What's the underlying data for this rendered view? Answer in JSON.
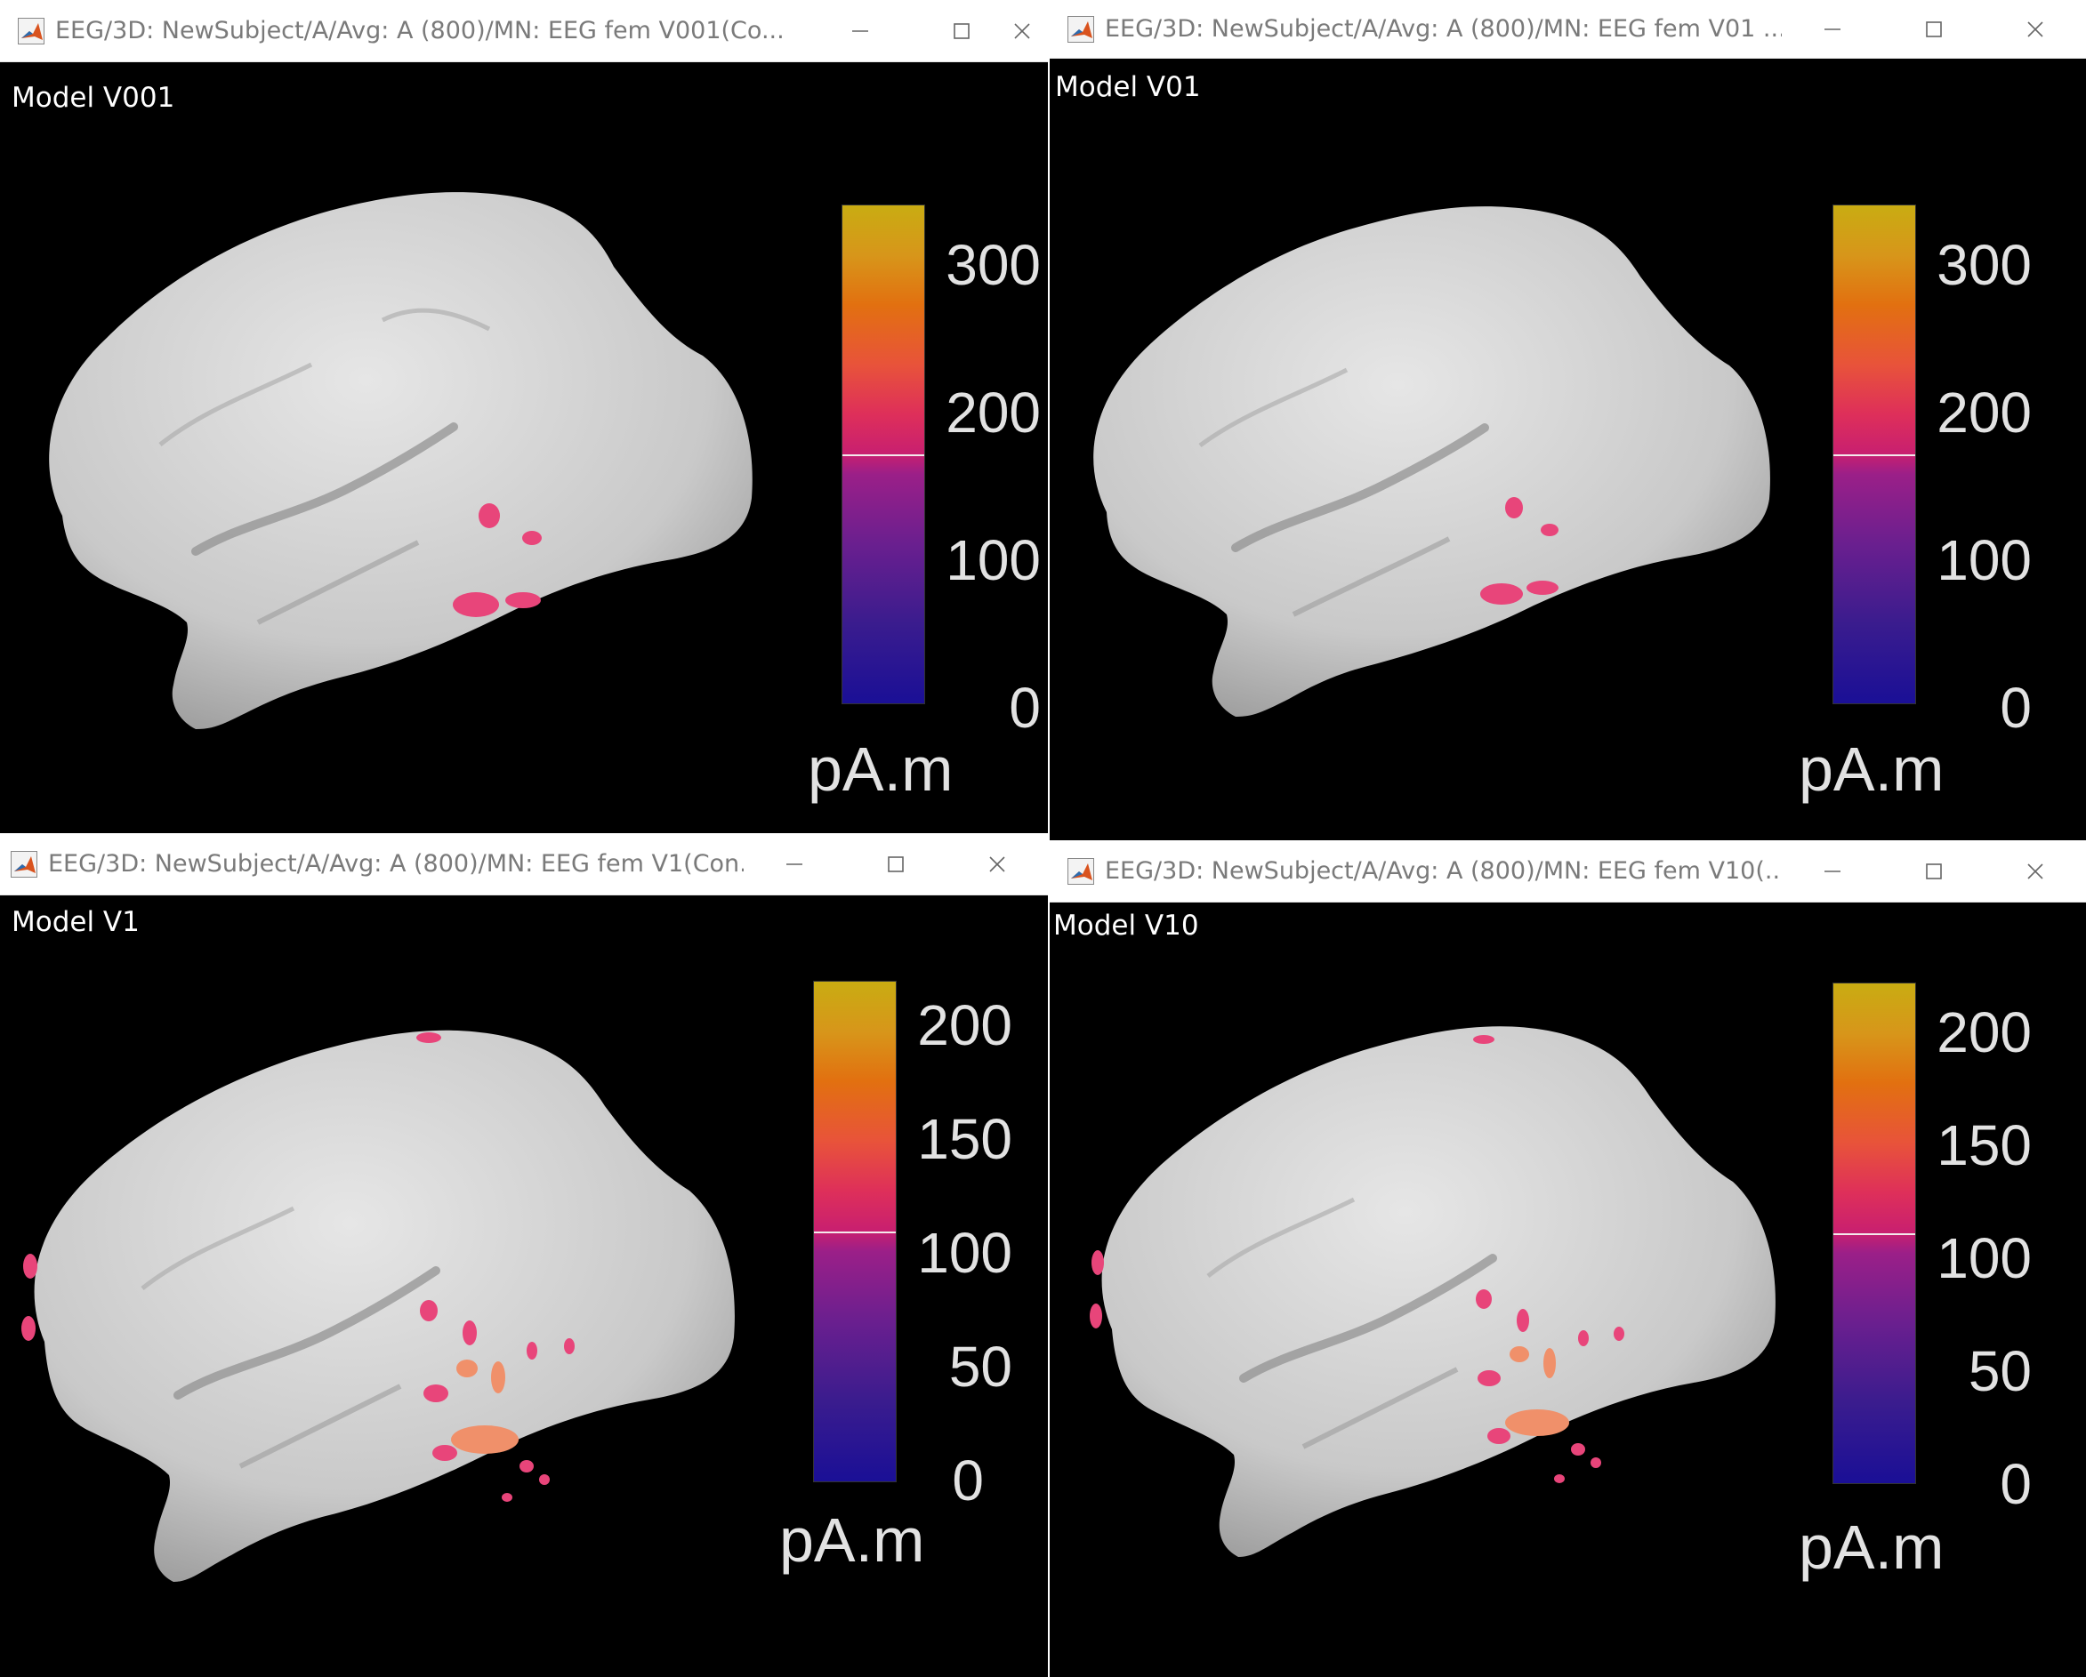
{
  "windows": [
    {
      "title": "EEG/3D: NewSubject/A/Avg: A (800)/MN: EEG fem V001(Co...",
      "label": "Model V001",
      "colorbar_ticks": [
        "300",
        "200",
        "100",
        "0"
      ],
      "unit": "pA.m"
    },
    {
      "title": "EEG/3D: NewSubject/A/Avg: A (800)/MN: EEG fem V01 ...",
      "label": "Model V01",
      "colorbar_ticks": [
        "300",
        "200",
        "100",
        "0"
      ],
      "unit": "pA.m"
    },
    {
      "title": "EEG/3D: NewSubject/A/Avg: A (800)/MN: EEG fem V1(Con...",
      "label": "Model V1",
      "colorbar_ticks": [
        "200",
        "150",
        "100",
        "50",
        "0"
      ],
      "unit": "pA.m"
    },
    {
      "title": "EEG/3D: NewSubject/A/Avg: A (800)/MN: EEG fem V10(...",
      "label": "Model V10",
      "colorbar_ticks": [
        "200",
        "150",
        "100",
        "50",
        "0"
      ],
      "unit": "pA.m"
    }
  ],
  "icons": {
    "app": "matlab-icon",
    "minimize": "minimize-icon",
    "maximize": "maximize-icon",
    "close": "close-icon"
  },
  "colors": {
    "background": "#000000",
    "brain_surface": "#c8c8c8",
    "colormap_low": "#1a0f96",
    "colormap_mid": "#c81f70",
    "colormap_high": "#c9ac12",
    "activation": "#e8457a"
  }
}
